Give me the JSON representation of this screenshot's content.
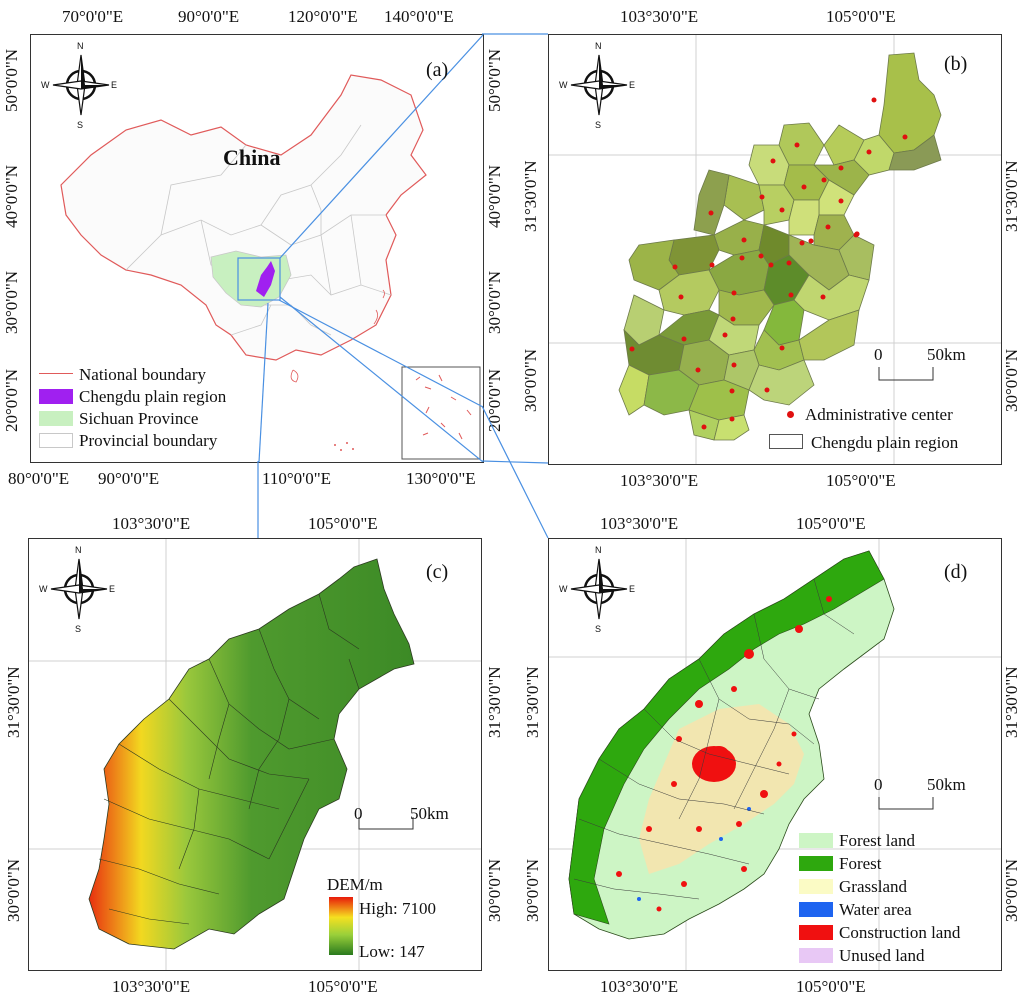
{
  "panel_a": {
    "tag": "(a)",
    "top_ticks": [
      "70°0'0\"E",
      "90°0'0\"E",
      "120°0'0\"E",
      "140°0'0\"E"
    ],
    "bottom_ticks": [
      "80°0'0\"E",
      "90°0'0\"E",
      "110°0'0\"E",
      "130°0'0\"E"
    ],
    "left_ticks": [
      "50°0'0\"N",
      "40°0'0\"N",
      "30°0'0\"N",
      "20°0'0\"N"
    ],
    "right_ticks": [
      "50°0'0\"N",
      "40°0'0\"N",
      "30°0'0\"N",
      "20°0'0\"N"
    ],
    "country_label": "China",
    "legend": [
      {
        "label": "National boundary",
        "color": "#e05a5a"
      },
      {
        "label": "Chengdu plain region",
        "color": "#a020f0"
      },
      {
        "label": "Sichuan Province",
        "color": "#c8f0c0"
      },
      {
        "label": "Provincial boundary",
        "color": "#c8c8c8"
      }
    ]
  },
  "panel_b": {
    "tag": "(b)",
    "top_ticks": [
      "103°30'0\"E",
      "105°0'0\"E"
    ],
    "bottom_ticks": [
      "103°30'0\"E",
      "105°0'0\"E"
    ],
    "left_ticks": [
      "31°30'0\"N",
      "30°0'0\"N"
    ],
    "right_ticks": [
      "31°30'0\"N",
      "30°0'0\"N"
    ],
    "scale_zero": "0",
    "scale_label": "50km",
    "legend": [
      {
        "label": "Administrative center",
        "color": "#e01010"
      },
      {
        "label": "Chengdu plain region",
        "color": "#ffffff"
      }
    ]
  },
  "panel_c": {
    "tag": "(c)",
    "top_ticks": [
      "103°30'0\"E",
      "105°0'0\"E"
    ],
    "bottom_ticks": [
      "103°30'0\"E",
      "105°0'0\"E"
    ],
    "left_ticks": [
      "31°30'0\"N",
      "30°0'0\"N"
    ],
    "right_ticks": [
      "31°30'0\"N",
      "30°0'0\"N"
    ],
    "scale_zero": "0",
    "scale_label": "50km",
    "legend_title": "DEM/m",
    "legend_high": "High: 7100",
    "legend_low": "Low: 147"
  },
  "panel_d": {
    "tag": "(d)",
    "top_ticks": [
      "103°30'0\"E",
      "105°0'0\"E"
    ],
    "bottom_ticks": [
      "103°30'0\"E",
      "105°0'0\"E"
    ],
    "left_ticks": [
      "31°30'0\"N",
      "30°0'0\"N"
    ],
    "right_ticks": [
      "31°30'0\"N",
      "30°0'0\"N"
    ],
    "scale_zero": "0",
    "scale_label": "50km",
    "legend": [
      {
        "label": "Forest land",
        "color": "#cdf5c5"
      },
      {
        "label": "Forest",
        "color": "#2ea80e"
      },
      {
        "label": "Grassland",
        "color": "#fbfbc5"
      },
      {
        "label": "Water area",
        "color": "#1e64f0"
      },
      {
        "label": "Construction land",
        "color": "#f01010"
      },
      {
        "label": "Unused land",
        "color": "#e8c8f5"
      }
    ]
  },
  "compass": {
    "n": "N",
    "s": "S",
    "e": "E",
    "w": "W"
  }
}
